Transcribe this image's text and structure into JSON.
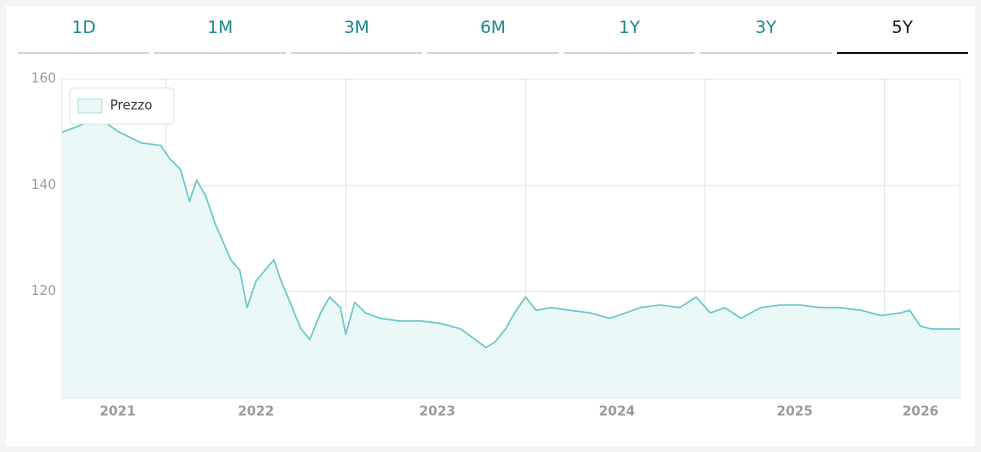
{
  "tabs": {
    "labels": [
      "1D",
      "1M",
      "3M",
      "6M",
      "1Y",
      "3Y",
      "5Y"
    ],
    "active": 6
  },
  "chart_data": {
    "type": "line",
    "legend_position": "upper left",
    "grid": true,
    "series": [
      {
        "name": "Prezzo",
        "color": "#6cc8c8",
        "fill": "#eaf8f8",
        "x": [
          2021.42,
          2021.58,
          2021.63,
          2021.74,
          2021.86,
          2021.97,
          2022.02,
          2022.08,
          2022.13,
          2022.17,
          2022.22,
          2022.27,
          2022.36,
          2022.41,
          2022.45,
          2022.5,
          2022.55,
          2022.6,
          2022.64,
          2022.69,
          2022.75,
          2022.8,
          2022.86,
          2022.91,
          2022.97,
          2023.0,
          2023.05,
          2023.11,
          2023.19,
          2023.3,
          2023.42,
          2023.53,
          2023.64,
          2023.72,
          2023.78,
          2023.83,
          2023.89,
          2023.94,
          2024.0,
          2024.06,
          2024.14,
          2024.25,
          2024.36,
          2024.47,
          2024.56,
          2024.64,
          2024.75,
          2024.86,
          2024.95,
          2025.03,
          2025.11,
          2025.2,
          2025.31,
          2025.42,
          2025.53,
          2025.64,
          2025.75,
          2025.87,
          2025.98,
          2026.09,
          2026.14,
          2026.2,
          2026.26,
          2026.34,
          2026.42
        ],
        "values": [
          150,
          152,
          152.5,
          150,
          148,
          147.5,
          145,
          143,
          137,
          141,
          138,
          133,
          126,
          124,
          117,
          122,
          124,
          126,
          122,
          118,
          113,
          111,
          116,
          119,
          117,
          112,
          118,
          116,
          115,
          114.5,
          114.5,
          114,
          113,
          111,
          109.5,
          110.5,
          113,
          116,
          119,
          116.5,
          117,
          116.5,
          116,
          115,
          116,
          117,
          117.5,
          117,
          119,
          116,
          117,
          115,
          117,
          117.5,
          117.5,
          117,
          117,
          116.5,
          115.5,
          116,
          116.5,
          113.5,
          113,
          113,
          113
        ]
      }
    ],
    "xlim": [
      2021.42,
      2026.42
    ],
    "xgrid": [
      2022,
      2023,
      2024,
      2025,
      2026
    ],
    "xticks": [
      {
        "value": 2021.73,
        "label": "2021"
      },
      {
        "value": 2022.5,
        "label": "2022"
      },
      {
        "value": 2023.51,
        "label": "2023"
      },
      {
        "value": 2024.51,
        "label": "2024"
      },
      {
        "value": 2025.5,
        "label": "2025"
      },
      {
        "value": 2026.2,
        "label": "2026"
      }
    ],
    "ylim": [
      100,
      160
    ],
    "yticks": [
      120,
      140,
      160
    ]
  }
}
